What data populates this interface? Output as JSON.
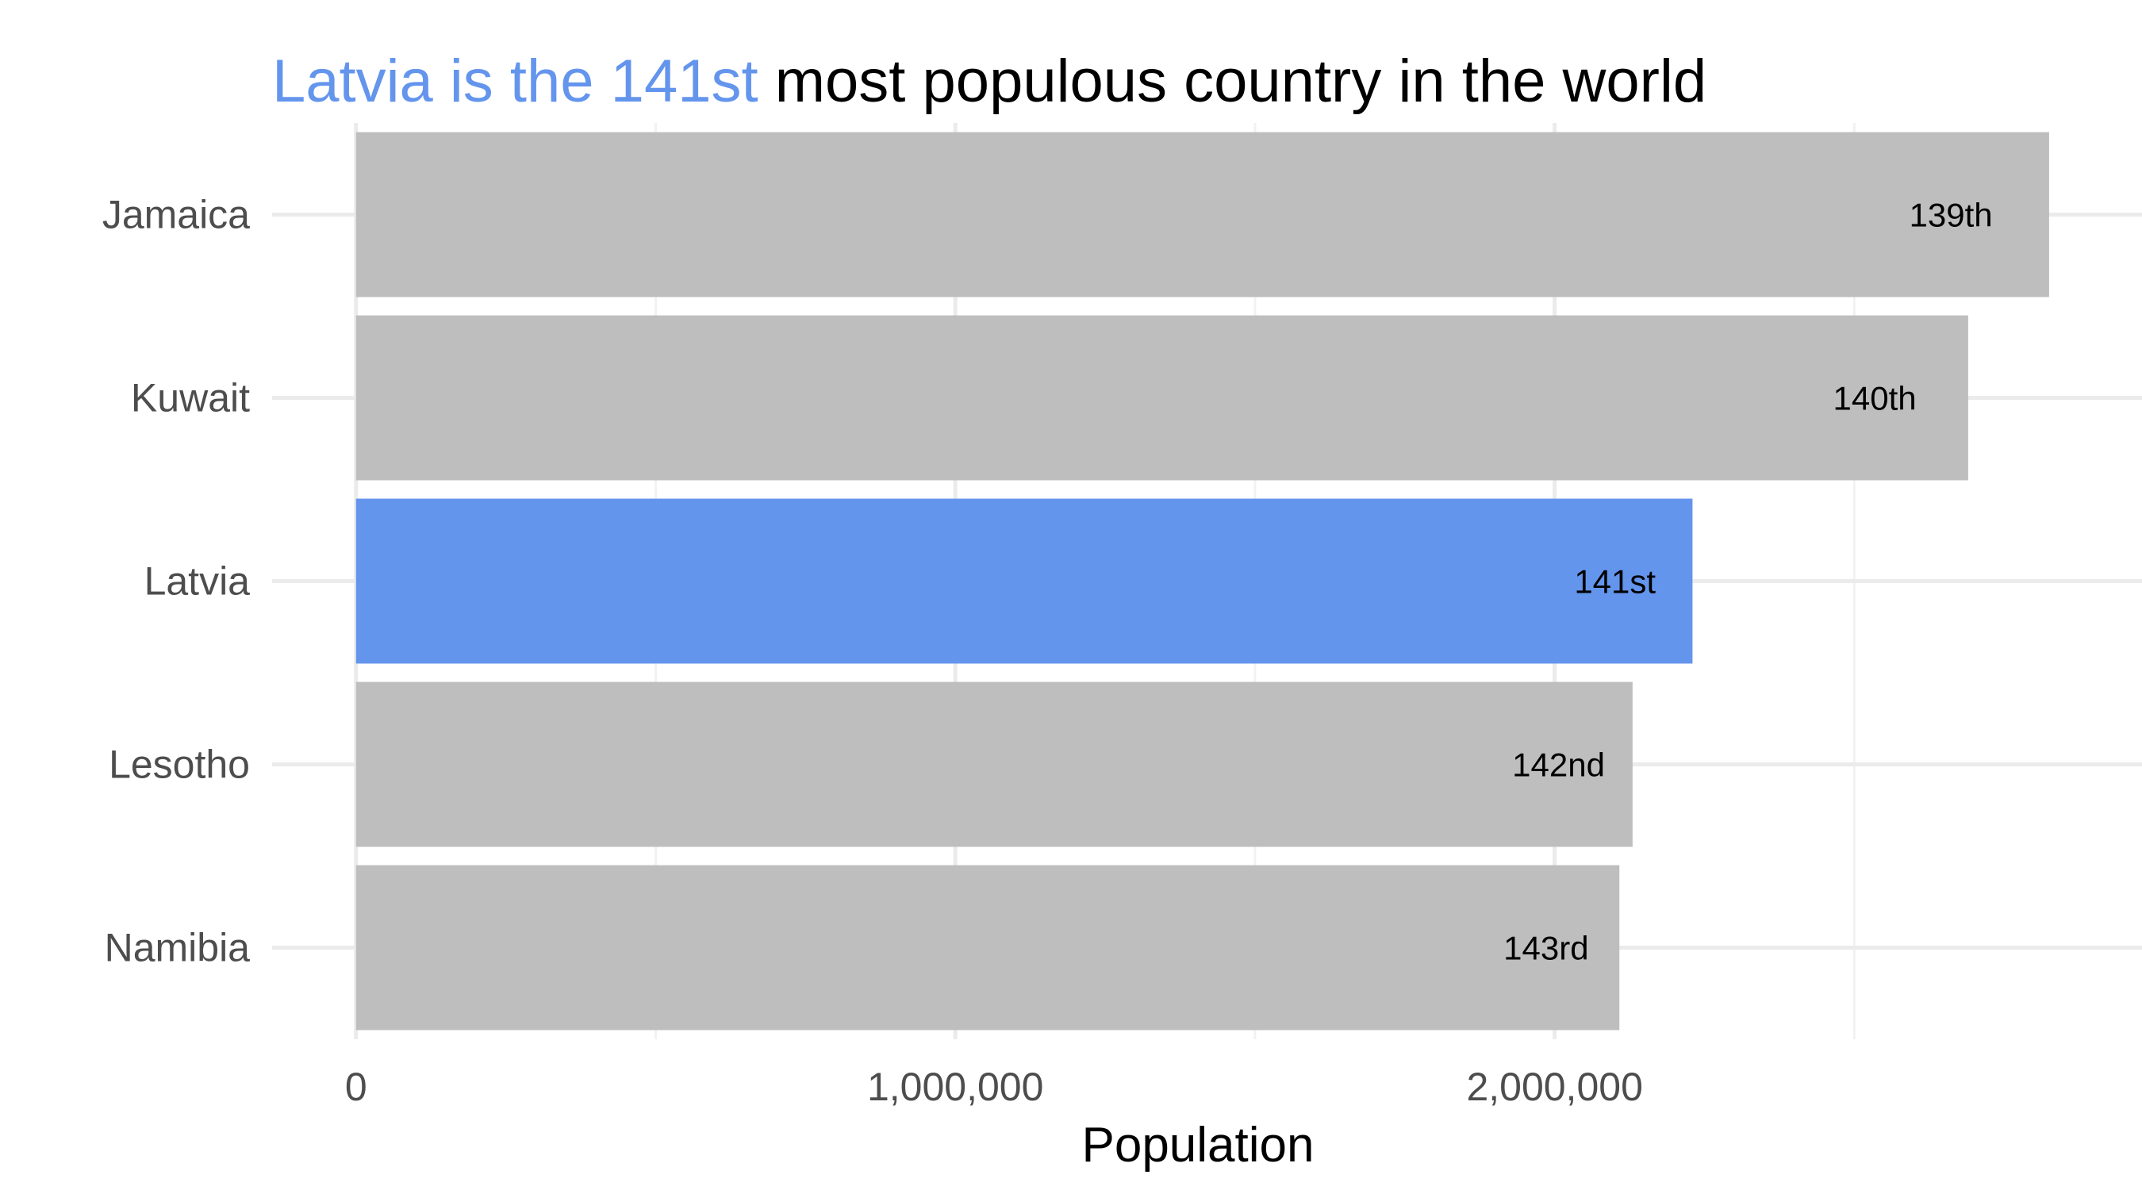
{
  "chart_data": {
    "type": "bar",
    "orientation": "horizontal",
    "title_highlight": "Latvia is the 141st",
    "title_rest": " most populous country in the world",
    "xlabel": "Population",
    "ylabel": "",
    "categories": [
      "Jamaica",
      "Kuwait",
      "Latvia",
      "Lesotho",
      "Namibia"
    ],
    "values": [
      2825000,
      2690000,
      2230000,
      2130000,
      2108000
    ],
    "rank_labels": [
      "139th",
      "140th",
      "141st",
      "142nd",
      "143rd"
    ],
    "highlight_category": "Latvia",
    "x_ticks": [
      0,
      1000000,
      2000000
    ],
    "x_tick_labels": [
      "0",
      "1,000,000",
      "2,000,000"
    ],
    "xlim": [
      -140000,
      2980000
    ],
    "grid": true,
    "legend": "none",
    "colors": {
      "bar": "#BEBEBE",
      "highlight": "#6495ED"
    }
  }
}
